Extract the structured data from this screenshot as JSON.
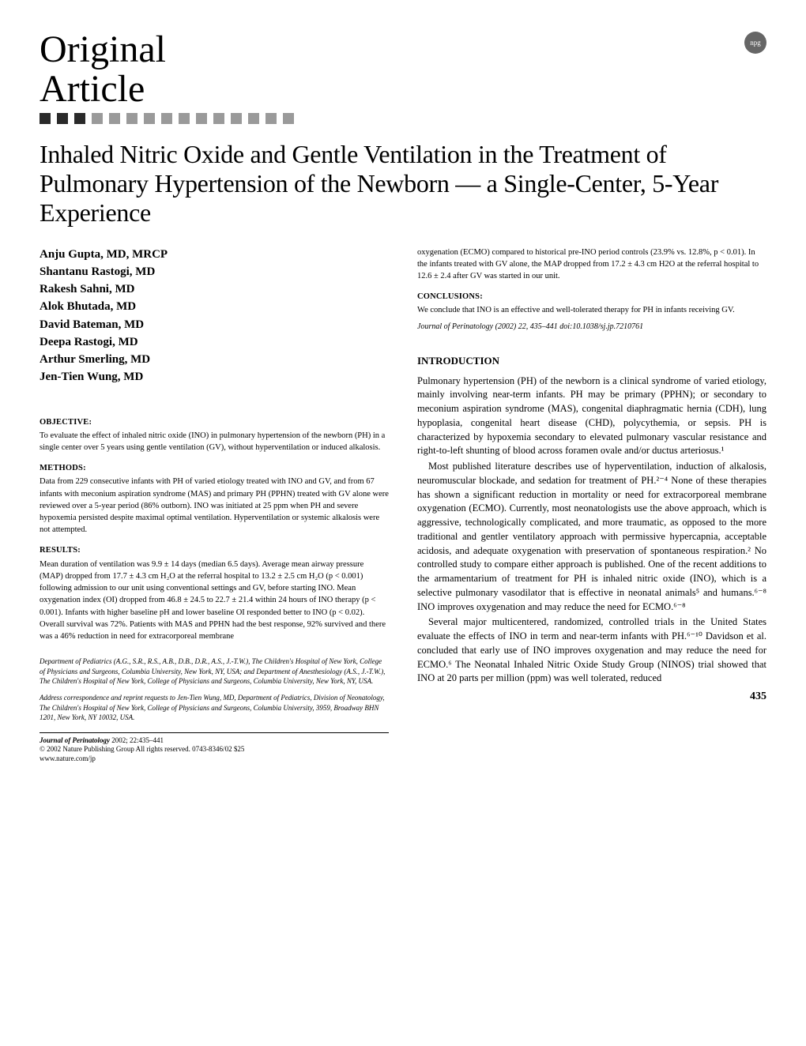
{
  "header": {
    "article_type_line1": "Original",
    "article_type_line2": "Article",
    "npg_label": "npg",
    "squares": {
      "dark_count": 3,
      "light_count": 12,
      "dark_color": "#2a2a2a",
      "light_color": "#9a9a9a"
    }
  },
  "title": "Inhaled Nitric Oxide and Gentle Ventilation in the Treatment of Pulmonary Hypertension of the Newborn — a Single-Center, 5-Year Experience",
  "authors": [
    "Anju Gupta, MD, MRCP",
    "Shantanu Rastogi, MD",
    "Rakesh Sahni, MD",
    "Alok Bhutada, MD",
    "David Bateman, MD",
    "Deepa Rastogi, MD",
    "Arthur Smerling, MD",
    "Jen-Tien Wung, MD"
  ],
  "abstract": {
    "objective": {
      "head": "OBJECTIVE:",
      "text": "To evaluate the effect of inhaled nitric oxide (INO) in pulmonary hypertension of the newborn (PH) in a single center over 5 years using gentle ventilation (GV), without hyperventilation or induced alkalosis."
    },
    "methods": {
      "head": "METHODS:",
      "text": "Data from 229 consecutive infants with PH of varied etiology treated with INO and GV, and from 67 infants with meconium aspiration syndrome (MAS) and primary PH (PPHN) treated with GV alone were reviewed over a 5-year period (86% outborn). INO was initiated at 25 ppm when PH and severe hypoxemia persisted despite maximal optimal ventilation. Hyperventilation or systemic alkalosis were not attempted."
    },
    "results": {
      "head": "RESULTS:",
      "text": "Mean duration of ventilation was 9.9 ± 14 days (median 6.5 days). Average mean airway pressure (MAP) dropped from 17.7 ± 4.3 cm H₂O at the referral hospital to 13.2 ± 2.5 cm H₂O (p < 0.001) following admission to our unit using conventional settings and GV, before starting INO. Mean oxygenation index (OI) dropped from 46.8 ± 24.5 to 22.7 ± 21.4 within 24 hours of INO therapy (p < 0.001). Infants with higher baseline pH and lower baseline OI responded better to INO (p < 0.02). Overall survival was 72%. Patients with MAS and PPHN had the best response, 92% survived and there was a 46% reduction in need for extracorporeal membrane"
    },
    "results_cont": "oxygenation (ECMO) compared to historical pre-INO period controls (23.9% vs. 12.8%, p < 0.01). In the infants treated with GV alone, the MAP dropped from 17.2 ± 4.3 cm H2O at the referral hospital to 12.6 ± 2.4 after GV was started in our unit.",
    "conclusions": {
      "head": "CONCLUSIONS:",
      "text": "We conclude that INO is an effective and well-tolerated therapy for PH in infants receiving GV."
    },
    "citation": "Journal of Perinatology (2002) 22, 435–441 doi:10.1038/sj.jp.7210761"
  },
  "affiliations": {
    "dept": "Department of Pediatrics (A.G., S.R., R.S., A.B., D.B., D.R., A.S., J.-T.W.), The Children's Hospital of New York, College of Physicians and Surgeons, Columbia University, New York, NY, USA; and Department of Anesthesiology (A.S., J.-T.W.), The Children's Hospital of New York, College of Physicians and Surgeons, Columbia University, New York, NY, USA.",
    "correspondence": "Address correspondence and reprint requests to Jen-Tien Wung, MD, Department of Pediatrics, Division of Neonatology, The Children's Hospital of New York, College of Physicians and Surgeons, Columbia University, 3959, Broadway BHN 1201, New York, NY 10032, USA."
  },
  "introduction": {
    "head": "INTRODUCTION",
    "p1": "Pulmonary hypertension (PH) of the newborn is a clinical syndrome of varied etiology, mainly involving near-term infants. PH may be primary (PPHN); or secondary to meconium aspiration syndrome (MAS), congenital diaphragmatic hernia (CDH), lung hypoplasia, congenital heart disease (CHD), polycythemia, or sepsis. PH is characterized by hypoxemia secondary to elevated pulmonary vascular resistance and right-to-left shunting of blood across foramen ovale and/or ductus arteriosus.¹",
    "p2": "Most published literature describes use of hyperventilation, induction of alkalosis, neuromuscular blockade, and sedation for treatment of PH.²⁻⁴ None of these therapies has shown a significant reduction in mortality or need for extracorporeal membrane oxygenation (ECMO). Currently, most neonatologists use the above approach, which is aggressive, technologically complicated, and more traumatic, as opposed to the more traditional and gentler ventilatory approach with permissive hypercapnia, acceptable acidosis, and adequate oxygenation with preservation of spontaneous respiration.² No controlled study to compare either approach is published. One of the recent additions to the armamentarium of treatment for PH is inhaled nitric oxide (INO), which is a selective pulmonary vasodilator that is effective in neonatal animals⁵ and humans.⁶⁻⁸ INO improves oxygenation and may reduce the need for ECMO.⁶⁻⁸",
    "p3": "Several major multicentered, randomized, controlled trials in the United States evaluate the effects of INO in term and near-term infants with PH.⁶⁻¹⁰ Davidson et al. concluded that early use of INO improves oxygenation and may reduce the need for ECMO.⁶ The Neonatal Inhaled Nitric Oxide Study Group (NINOS) trial showed that INO at 20 parts per million (ppm) was well tolerated, reduced"
  },
  "footer": {
    "journal_line1": "Journal of Perinatology 2002; 22:435–441",
    "journal_line2": "© 2002 Nature Publishing Group All rights reserved. 0743-8346/02 $25",
    "url": "www.nature.com/jp",
    "page": "435"
  },
  "style": {
    "body_font": "Georgia, 'Times New Roman', serif",
    "title_fontsize": 32,
    "article_type_fontsize": 48,
    "author_fontsize": 15,
    "abstract_fontsize": 10.5,
    "body_fontsize": 12.5,
    "background": "#ffffff",
    "text_color": "#000000",
    "column_gap": 36
  }
}
